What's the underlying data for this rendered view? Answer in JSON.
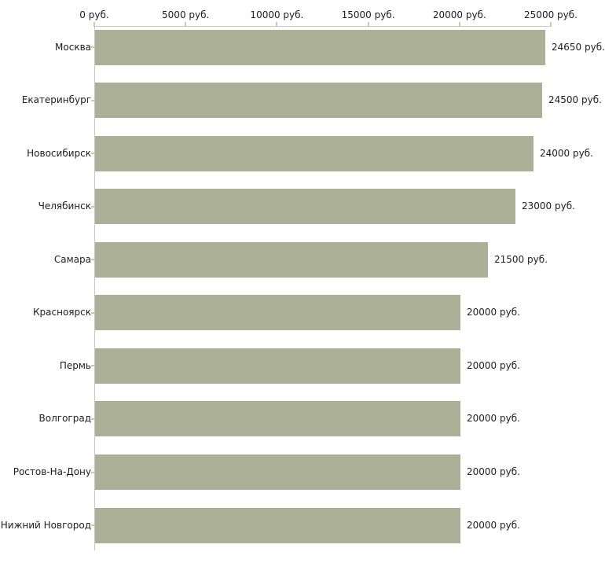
{
  "chart_data": {
    "type": "bar",
    "orientation": "horizontal",
    "title": "",
    "xlabel": "",
    "ylabel": "",
    "unit": "руб.",
    "categories": [
      "Москва",
      "Екатеринбург",
      "Новосибирск",
      "Челябинск",
      "Самара",
      "Красноярск",
      "Пермь",
      "Волгоград",
      "Ростов-На-Дону",
      "Нижний Новгород"
    ],
    "values": [
      24650,
      24500,
      24000,
      23000,
      21500,
      20000,
      20000,
      20000,
      20000,
      20000
    ],
    "value_labels": [
      "24650 руб.",
      "24500 руб.",
      "24000 руб.",
      "23000 руб.",
      "21500 руб.",
      "20000 руб.",
      "20000 руб.",
      "20000 руб.",
      "20000 руб.",
      "20000 руб."
    ],
    "x_ticks": [
      0,
      5000,
      10000,
      15000,
      20000,
      25000
    ],
    "x_tick_labels": [
      "0 руб.",
      "5000 руб.",
      "10000 руб.",
      "15000 руб.",
      "20000 руб.",
      "25000 руб."
    ],
    "xlim": [
      0,
      25000
    ],
    "axis_position": "top",
    "grid": false,
    "legend": false,
    "colors": {
      "bar_fill": "#abb096",
      "axis_line": "#c6c6c6",
      "tick_mark": "#c9cca4",
      "text": "#1e1e1e",
      "background": "#ffffff"
    }
  }
}
